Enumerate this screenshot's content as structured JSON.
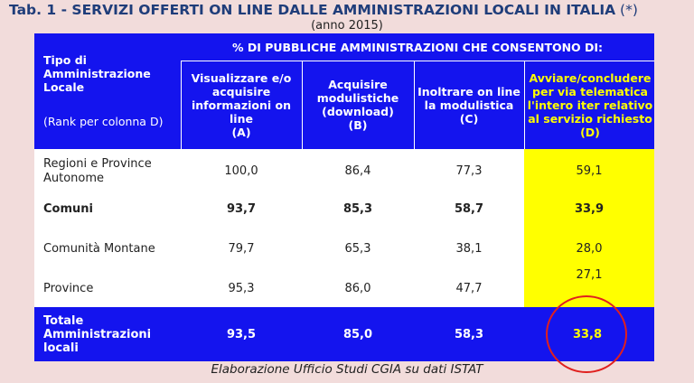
{
  "title": {
    "main": "Tab. 1 - SERVIZI OFFERTI ON LINE DALLE AMMINISTRAZIONI LOCALI IN ITALIA",
    "star": " (*)",
    "subtitle": "(anno 2015)"
  },
  "header": {
    "type_label": "Tipo di Amministrazione Locale",
    "rank_label": "(Rank per colonna D)",
    "group_label": "% DI PUBBLICHE AMMINISTRAZIONI CHE CONSENTONO DI:",
    "col_a": "Visualizzare e/o acquisire informazioni on line",
    "col_a_letter": "(A)",
    "col_b": "Acquisire modulistiche (download)",
    "col_b_letter": "(B)",
    "col_c": "Inoltrare on line la modulistica",
    "col_c_letter": "(C)",
    "col_d": "Avviare/concludere per via telematica l'intero iter relativo al servizio richiesto",
    "col_d_letter": "(D)"
  },
  "rows": [
    {
      "type": "Regioni e Province Autonome",
      "a": "100,0",
      "b": "86,4",
      "c": "77,3",
      "d": "59,1"
    },
    {
      "type": "Comuni",
      "a": "93,7",
      "b": "85,3",
      "c": "58,7",
      "d": "33,9"
    },
    {
      "type": "Comunità Montane",
      "a": "79,7",
      "b": "65,3",
      "c": "38,1",
      "d": "28,0"
    },
    {
      "type": "Province",
      "a": "95,3",
      "b": "86,0",
      "c": "47,7",
      "d": "27,1"
    }
  ],
  "total": {
    "type": "Totale Amministrazioni locali",
    "a": "93,5",
    "b": "85,0",
    "c": "58,3",
    "d": "33,8"
  },
  "note": "Elaborazione Ufficio Studi CGIA su dati ISTAT",
  "colors": {
    "header_blue": "#1414ee",
    "highlight_yellow": "#ffff00",
    "circle_red": "#e0201e",
    "background": "#f2dcdb"
  }
}
